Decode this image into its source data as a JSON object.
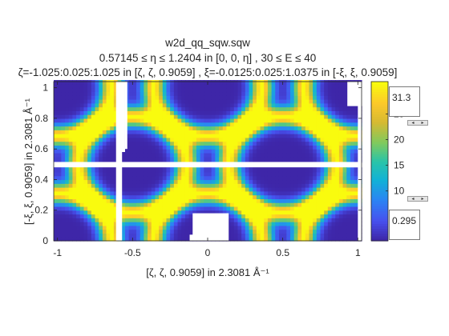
{
  "chart_data": {
    "type": "heatmap",
    "title": [
      "w2d_qq_sqw.sqw",
      "0.57145 ≤ η ≤ 1.2404 in [0, 0, η] , 30 ≤ E ≤ 40",
      "ζ=-1.025:0.025:1.025 in [ζ, ζ, 0.9059] , ξ=-0.0125:0.025:1.0375 in [-ξ, ξ, 0.9059]"
    ],
    "xlabel": "[ζ, ζ, 0.9059] in 2.3081 Å⁻¹",
    "ylabel": "[-ξ, ξ, 0.9059] in 2.3081 Å⁻¹",
    "xlim": [
      -1.025,
      1.025
    ],
    "ylim": [
      0,
      1.04
    ],
    "xticks": [
      "-1",
      "-0.5",
      "0",
      "0.5",
      "1"
    ],
    "yticks": [
      "0",
      "0.2",
      "0.4",
      "0.6",
      "0.8",
      "1"
    ],
    "grid": false,
    "colormap": "parula",
    "clim": [
      0.295,
      31.3
    ],
    "colorbar_ticks": [
      "10",
      "15",
      "20",
      "25"
    ],
    "colorbar_inputs": {
      "max": "31.3",
      "min": "0.295"
    },
    "background_color": "#ffffff"
  }
}
